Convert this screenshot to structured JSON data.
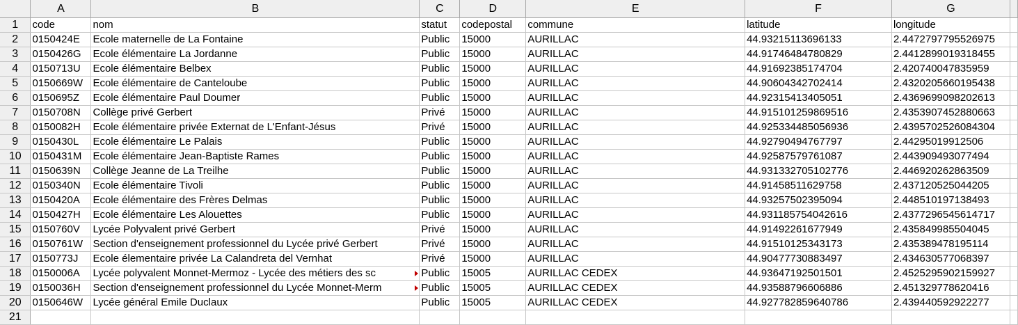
{
  "columns": [
    "A",
    "B",
    "C",
    "D",
    "E",
    "F",
    "G"
  ],
  "header_row": [
    "code",
    "nom",
    "statut",
    "codepostal",
    "commune",
    "latitude",
    "longitude"
  ],
  "rows": [
    [
      "0150424E",
      "Ecole maternelle de La Fontaine",
      "Public",
      "15000",
      "AURILLAC",
      "44.93215113696133",
      "2.4472797795526975"
    ],
    [
      "0150426G",
      "Ecole élémentaire La Jordanne",
      "Public",
      "15000",
      "AURILLAC",
      "44.91746484780829",
      "2.4412899019318455"
    ],
    [
      "0150713U",
      "Ecole élémentaire Belbex",
      "Public",
      "15000",
      "AURILLAC",
      "44.91692385174704",
      "2.420740047835959"
    ],
    [
      "0150669W",
      "Ecole élémentaire de Canteloube",
      "Public",
      "15000",
      "AURILLAC",
      "44.90604342702414",
      "2.4320205660195438"
    ],
    [
      "0150695Z",
      "Ecole élémentaire Paul Doumer",
      "Public",
      "15000",
      "AURILLAC",
      "44.92315413405051",
      "2.4369699098202613"
    ],
    [
      "0150708N",
      "Collège privé Gerbert",
      "Privé",
      "15000",
      "AURILLAC",
      "44.915101259869516",
      "2.4353907452880663"
    ],
    [
      "0150082H",
      "Ecole élémentaire privée Externat de L'Enfant-Jésus",
      "Privé",
      "15000",
      "AURILLAC",
      "44.925334485056936",
      "2.4395702526084304"
    ],
    [
      "0150430L",
      "Ecole élémentaire Le Palais",
      "Public",
      "15000",
      "AURILLAC",
      "44.92790494767797",
      "2.44295019912506"
    ],
    [
      "0150431M",
      "Ecole élémentaire Jean-Baptiste Rames",
      "Public",
      "15000",
      "AURILLAC",
      "44.92587579761087",
      "2.443909493077494"
    ],
    [
      "0150639N",
      "Collège Jeanne de La Treilhe",
      "Public",
      "15000",
      "AURILLAC",
      "44.931332705102776",
      "2.446920262863509"
    ],
    [
      "0150340N",
      "Ecole élémentaire Tivoli",
      "Public",
      "15000",
      "AURILLAC",
      "44.91458511629758",
      "2.437120525044205"
    ],
    [
      "0150420A",
      "Ecole élémentaire des Frères Delmas",
      "Public",
      "15000",
      "AURILLAC",
      "44.93257502395094",
      "2.448510197138493"
    ],
    [
      "0150427H",
      "Ecole élémentaire Les Alouettes",
      "Public",
      "15000",
      "AURILLAC",
      "44.931185754042616",
      "2.4377296545614717"
    ],
    [
      "0150760V",
      "Lycée Polyvalent privé Gerbert",
      "Privé",
      "15000",
      "AURILLAC",
      "44.91492261677949",
      "2.435849985504045"
    ],
    [
      "0150761W",
      "Section d'enseignement professionnel du Lycée privé Gerbert",
      "Privé",
      "15000",
      "AURILLAC",
      "44.91510125343173",
      "2.435389478195114"
    ],
    [
      "0150773J",
      "Ecole élementaire privée La Calandreta del Vernhat",
      "Privé",
      "15000",
      "AURILLAC",
      "44.90477730883497",
      "2.434630577068397"
    ],
    [
      "0150006A",
      "Lycée polyvalent Monnet-Mermoz - Lycée des métiers des sc",
      "Public",
      "15005",
      "AURILLAC CEDEX",
      "44.93647192501501",
      "2.4525295902159927"
    ],
    [
      "0150036H",
      "Section d'enseignement professionnel du Lycée Monnet-Merm",
      "Public",
      "15005",
      "AURILLAC CEDEX",
      "44.93588796606886",
      "2.451329778620416"
    ],
    [
      "0150646W",
      "Lycée général Emile Duclaux",
      "Public",
      "15005",
      "AURILLAC CEDEX",
      "44.927782859640786",
      "2.439440592922277"
    ]
  ],
  "overflow_rows": [
    18,
    19
  ],
  "colors": {
    "header_bg": "#efefef",
    "grid": "#c6c6c6",
    "overflow_marker": "#c00000"
  }
}
